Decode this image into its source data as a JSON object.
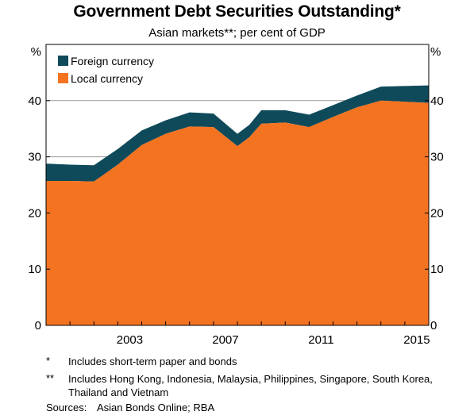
{
  "title": "Government Debt Securities Outstanding*",
  "subtitle": "Asian markets**; per cent of GDP",
  "notes": [
    {
      "mark": "*",
      "text": "Includes short-term paper and bonds"
    },
    {
      "mark": "**",
      "text": "Includes Hong Kong, Indonesia, Malaysia, Philippines, Singapore, South Korea, Thailand and Vietnam"
    }
  ],
  "sources": {
    "label": "Sources:",
    "text": "Asian Bonds Online; RBA"
  },
  "colors": {
    "foreign": "#0f4a5a",
    "local": "#f47321",
    "frame": "#000000",
    "grid": "#9a9a9a"
  },
  "chart_data": {
    "type": "area",
    "stacked": true,
    "title": "Government Debt Securities Outstanding*",
    "subtitle": "Asian markets**; per cent of GDP",
    "ylabel_left": "%",
    "ylabel_right": "%",
    "ylim": [
      0,
      50
    ],
    "yticks": [
      "0",
      "10",
      "20",
      "30",
      "40"
    ],
    "xlim": [
      2000,
      2016
    ],
    "xticks": [
      "2003",
      "2007",
      "2011",
      "2015"
    ],
    "grid": true,
    "legend_position": "top-left",
    "x": [
      2000,
      2001,
      2002,
      2003,
      2004,
      2005,
      2006,
      2007,
      2008,
      2008.5,
      2009,
      2010,
      2011,
      2012,
      2013,
      2014,
      2015,
      2016
    ],
    "series": [
      {
        "name": "Local currency",
        "color": "#f47321",
        "values": [
          25.7,
          25.7,
          25.6,
          28.6,
          32.1,
          34.1,
          35.4,
          35.3,
          31.9,
          33.5,
          35.9,
          36.1,
          35.3,
          37.1,
          38.8,
          40.0,
          39.8,
          39.6
        ]
      },
      {
        "name": "Foreign currency",
        "color": "#0f4a5a",
        "values": [
          3.1,
          2.9,
          2.9,
          2.8,
          2.6,
          2.4,
          2.5,
          2.4,
          2.2,
          2.2,
          2.4,
          2.2,
          2.2,
          2.1,
          2.1,
          2.5,
          2.8,
          3.1
        ]
      }
    ]
  }
}
